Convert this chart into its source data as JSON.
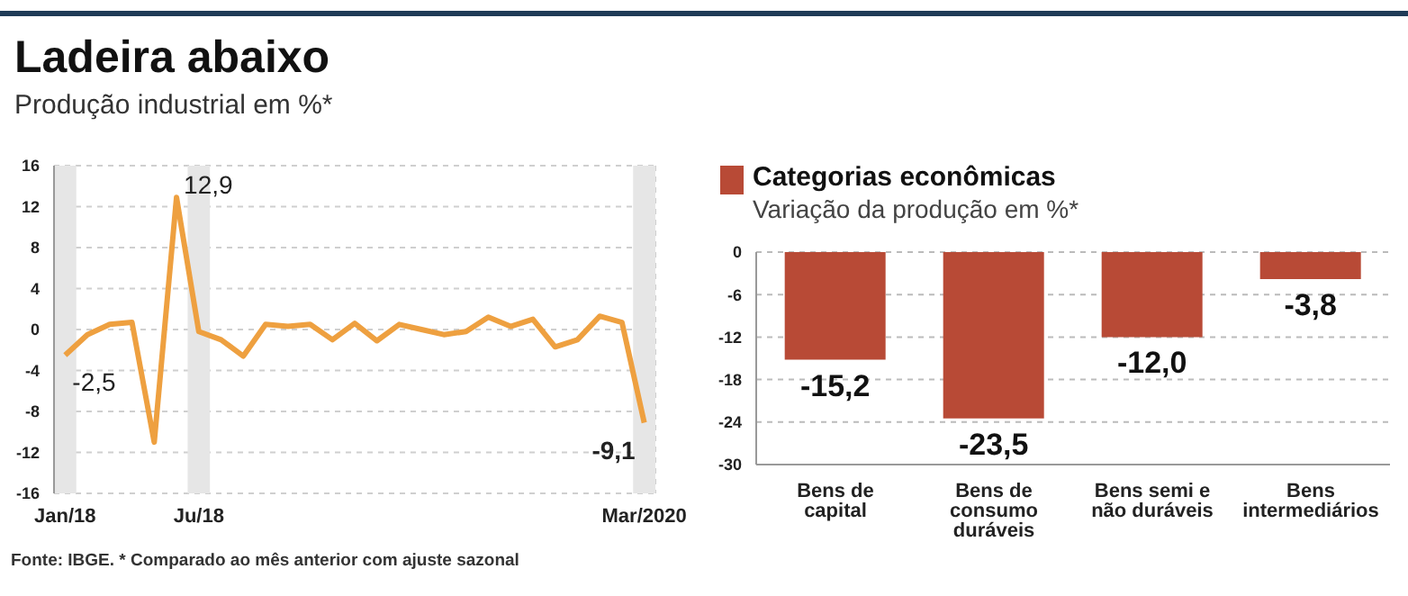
{
  "chart_data": [
    {
      "type": "line",
      "title": "Ladeira abaixo",
      "subtitle": "Produção industrial em %*",
      "categories": [
        "Jan/18",
        null,
        null,
        null,
        null,
        null,
        "Ju/18",
        null,
        null,
        null,
        null,
        null,
        null,
        null,
        null,
        null,
        null,
        null,
        null,
        null,
        null,
        null,
        null,
        null,
        null,
        null,
        "Mar/2020"
      ],
      "series": [
        {
          "color": "#eea040",
          "values": [
            -2.5,
            -0.5,
            0.5,
            0.7,
            -11.0,
            12.9,
            -0.2,
            -1.0,
            -2.6,
            0.5,
            0.3,
            0.5,
            -1.0,
            0.6,
            -1.1,
            0.5,
            0.0,
            -0.5,
            -0.2,
            1.2,
            0.3,
            1.0,
            -1.7,
            -1.0,
            1.3,
            0.7,
            -9.1
          ],
          "value_labels": [
            "-2,5",
            null,
            null,
            null,
            null,
            "12,9",
            null,
            null,
            null,
            null,
            null,
            null,
            null,
            null,
            null,
            null,
            null,
            null,
            null,
            null,
            null,
            null,
            null,
            null,
            null,
            null,
            "-9,1"
          ]
        }
      ],
      "ylim": [
        -16,
        16
      ],
      "yticks": [
        -16,
        -12,
        -8,
        -4,
        0,
        4,
        8,
        12,
        16
      ],
      "grid": true,
      "marker": "none",
      "bands": [
        {
          "axis": "x",
          "from": "Jan/18",
          "to": "Jan/18",
          "color": "#e6e6e6"
        },
        {
          "axis": "x",
          "from": "Ju/18",
          "to": "Ju/18",
          "color": "#e6e6e6"
        },
        {
          "axis": "x",
          "from": "Mar/2020",
          "to": "Mar/2020",
          "color": "#e6e6e6"
        }
      ],
      "annotations": [
        "Fonte: IBGE. * Comparado ao mês anterior com ajuste sazonal"
      ]
    },
    {
      "type": "bar",
      "title": "Categorias econômicas",
      "subtitle": "Variação da produção em %*",
      "categories": [
        "Bens de capital",
        "Bens de consumo duráveis",
        "Bens semi e não duráveis",
        "Bens intermediários"
      ],
      "values": [
        -15.2,
        -23.5,
        -12.0,
        -3.8
      ],
      "value_labels": [
        "-15,2",
        "-23,5",
        "-12,0",
        "-3,8"
      ],
      "color": "#b84a36",
      "ylim": [
        -30,
        0
      ],
      "yticks": [
        -30,
        -24,
        -18,
        -12,
        -6,
        0
      ],
      "grid": "y"
    }
  ]
}
